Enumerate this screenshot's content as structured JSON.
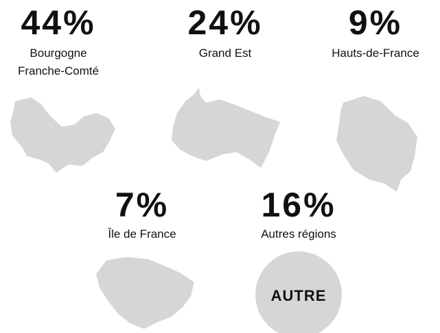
{
  "regions": [
    {
      "percent": "44%",
      "label_lines": [
        "Bourgogne",
        "Franche-Comté"
      ]
    },
    {
      "percent": "24%",
      "label_lines": [
        "Grand Est"
      ]
    },
    {
      "percent": "9%",
      "label_lines": [
        "Hauts-de-France"
      ]
    },
    {
      "percent": "7%",
      "label_lines": [
        "Île de France"
      ]
    },
    {
      "percent": "16%",
      "label_lines": [
        "Autres régions"
      ],
      "badge": "AUTRE"
    }
  ]
}
